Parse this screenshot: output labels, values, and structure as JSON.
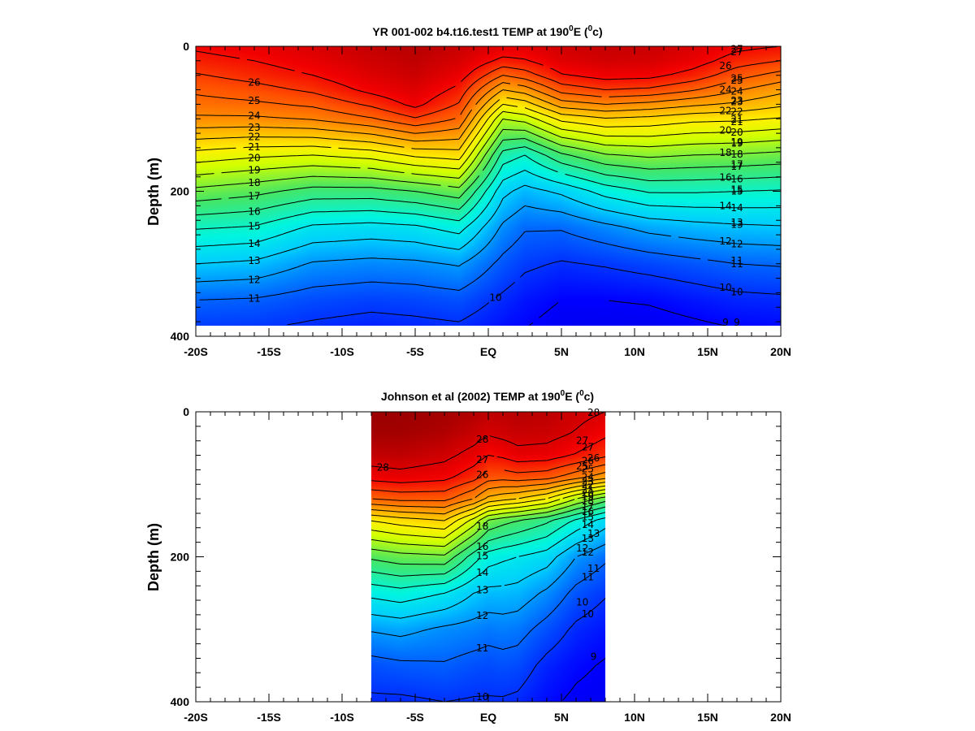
{
  "chart_data": [
    {
      "type": "heatmap",
      "title": "YR 001-002 b4.t16.test1 TEMP at 190",
      "title_sup1": "0",
      "title_mid": "E (",
      "title_sup2": "0",
      "title_end": "c)",
      "ylabel": "Depth (m)",
      "xlim": [
        -20,
        20
      ],
      "ylim": [
        400,
        0
      ],
      "data_xlim": [
        -20,
        20
      ],
      "data_ylim": [
        0,
        385
      ],
      "x_ticks": [
        {
          "value": -20,
          "label": "-20S"
        },
        {
          "value": -15,
          "label": "-15S"
        },
        {
          "value": -10,
          "label": "-10S"
        },
        {
          "value": -5,
          "label": "-5S"
        },
        {
          "value": 0,
          "label": "EQ"
        },
        {
          "value": 5,
          "label": "5N"
        },
        {
          "value": 10,
          "label": "10N"
        },
        {
          "value": 15,
          "label": "15N"
        },
        {
          "value": 20,
          "label": "20N"
        }
      ],
      "y_ticks": [
        {
          "value": 0,
          "label": "0"
        },
        {
          "value": 200,
          "label": "200"
        },
        {
          "value": 400,
          "label": "400"
        }
      ],
      "control_x": [
        -20,
        -16,
        -12,
        -8,
        -5,
        -2,
        1,
        2.5,
        5,
        8,
        11,
        14,
        17,
        20
      ],
      "t_depth": [
        0,
        20,
        40,
        60,
        80,
        100,
        150,
        200,
        250,
        300,
        350,
        400
      ],
      "t_profiles": [
        [
          27.2,
          26.6,
          25.9,
          25.2,
          24.6,
          23.8,
          20.6,
          17.7,
          15.1,
          13.0,
          11.0,
          9.9
        ],
        [
          27.6,
          27.0,
          26.4,
          25.6,
          24.8,
          23.8,
          20.2,
          17.3,
          14.9,
          12.8,
          10.9,
          9.8
        ],
        [
          28.0,
          27.6,
          27.0,
          26.2,
          25.2,
          24.1,
          20.0,
          16.6,
          13.8,
          11.9,
          10.5,
          9.6
        ],
        [
          28.6,
          28.3,
          27.9,
          27.3,
          26.2,
          24.9,
          20.4,
          16.6,
          13.6,
          11.7,
          10.3,
          9.4
        ],
        [
          28.9,
          28.7,
          28.4,
          27.9,
          27.3,
          25.9,
          21.2,
          17.0,
          13.8,
          11.8,
          10.4,
          9.5
        ],
        [
          28.5,
          28.1,
          27.5,
          26.7,
          25.9,
          24.9,
          21.5,
          17.6,
          14.4,
          12.1,
          10.6,
          9.6
        ],
        [
          27.8,
          26.7,
          25.0,
          23.0,
          21.0,
          19.0,
          15.6,
          13.3,
          11.8,
          10.7,
          9.8,
          9.1
        ],
        [
          27.8,
          26.9,
          25.5,
          23.5,
          21.5,
          19.4,
          15.0,
          12.6,
          11.1,
          10.2,
          9.4,
          8.9
        ],
        [
          28.3,
          27.8,
          26.9,
          25.4,
          23.5,
          21.3,
          16.8,
          13.2,
          11.1,
          9.9,
          9.0,
          8.5
        ],
        [
          28.6,
          28.2,
          27.4,
          26.0,
          24.0,
          21.9,
          17.9,
          14.4,
          11.7,
          10.1,
          9.0,
          8.4
        ],
        [
          28.5,
          28.1,
          27.3,
          25.8,
          23.7,
          21.7,
          18.2,
          15.1,
          12.3,
          10.4,
          9.1,
          8.4
        ],
        [
          28.0,
          27.5,
          26.6,
          25.1,
          23.2,
          21.3,
          18.0,
          15.1,
          12.6,
          10.7,
          9.4,
          8.6
        ],
        [
          27.3,
          26.5,
          25.4,
          24.1,
          22.8,
          21.2,
          17.9,
          15.0,
          12.8,
          11.0,
          9.7,
          8.8
        ],
        [
          27.0,
          26.0,
          24.6,
          23.3,
          22.2,
          20.9,
          17.7,
          14.9,
          12.9,
          11.1,
          9.8,
          8.9
        ]
      ],
      "contour_levels": [
        9,
        10,
        11,
        12,
        13,
        14,
        15,
        16,
        17,
        18,
        19,
        20,
        21,
        22,
        23,
        24,
        25,
        26,
        27
      ],
      "contour_label_values": [
        "26",
        "25",
        "24",
        "23",
        "22",
        "21",
        "20",
        "19",
        "18",
        "17",
        "16",
        "15",
        "14",
        "13",
        "12",
        "11",
        "10",
        "27",
        "25",
        "24",
        "23",
        "22",
        "21",
        "20",
        "19",
        "18",
        "17",
        "16",
        "15",
        "14",
        "13",
        "12",
        "11",
        "10",
        "27",
        "26",
        "25",
        "24",
        "23",
        "22",
        "21",
        "20",
        "19",
        "18",
        "17",
        "16",
        "15",
        "14",
        "13",
        "12",
        "11",
        "10",
        "9",
        "9"
      ]
    },
    {
      "type": "heatmap",
      "title": "Johnson et al (2002) TEMP at 190",
      "title_sup1": "0",
      "title_mid": "E (",
      "title_sup2": "0",
      "title_end": "c)",
      "ylabel": "Depth (m)",
      "xlim": [
        -20,
        20
      ],
      "ylim": [
        400,
        0
      ],
      "data_xlim": [
        -8,
        8
      ],
      "data_ylim": [
        0,
        400
      ],
      "x_ticks": [
        {
          "value": -20,
          "label": "-20S"
        },
        {
          "value": -15,
          "label": "-15S"
        },
        {
          "value": -10,
          "label": "-10S"
        },
        {
          "value": -5,
          "label": "-5S"
        },
        {
          "value": 0,
          "label": "EQ"
        },
        {
          "value": 5,
          "label": "5N"
        },
        {
          "value": 10,
          "label": "10N"
        },
        {
          "value": 15,
          "label": "15N"
        },
        {
          "value": 20,
          "label": "20N"
        }
      ],
      "y_ticks": [
        {
          "value": 0,
          "label": "0"
        },
        {
          "value": 200,
          "label": "200"
        },
        {
          "value": 400,
          "label": "400"
        }
      ],
      "control_x": [
        -8,
        -6,
        -3,
        -1,
        0,
        1,
        2,
        4,
        6,
        8
      ],
      "t_depth": [
        0,
        30,
        60,
        90,
        120,
        150,
        200,
        250,
        300,
        350,
        400
      ],
      "t_profiles": [
        [
          29.5,
          29.3,
          28.6,
          27.4,
          25.0,
          21.0,
          17.2,
          14.3,
          12.1,
          10.6,
          9.8
        ],
        [
          29.5,
          29.3,
          28.7,
          27.6,
          25.3,
          21.5,
          17.6,
          14.6,
          12.3,
          10.8,
          9.8
        ],
        [
          29.3,
          29.0,
          28.3,
          27.3,
          25.3,
          22.0,
          17.8,
          14.0,
          11.8,
          10.9,
          10.0
        ],
        [
          29.0,
          28.5,
          27.6,
          26.4,
          24.0,
          19.6,
          15.5,
          13.0,
          11.6,
          10.6,
          9.9
        ],
        [
          28.8,
          28.1,
          27.0,
          25.5,
          22.7,
          17.9,
          14.5,
          12.7,
          11.4,
          10.5,
          9.9
        ],
        [
          28.8,
          28.3,
          27.2,
          25.4,
          22.3,
          17.4,
          14.2,
          12.7,
          11.5,
          10.6,
          9.9
        ],
        [
          28.9,
          28.5,
          27.6,
          25.6,
          22.0,
          17.0,
          14.0,
          12.6,
          11.4,
          10.5,
          9.8
        ],
        [
          28.8,
          28.4,
          27.5,
          25.4,
          21.0,
          16.2,
          13.5,
          11.8,
          10.6,
          9.7,
          9.2
        ],
        [
          28.4,
          27.9,
          26.9,
          24.4,
          19.0,
          14.8,
          12.0,
          10.7,
          9.8,
          9.2,
          8.8
        ],
        [
          28.0,
          27.2,
          26.2,
          23.4,
          17.5,
          13.5,
          11.2,
          10.1,
          9.4,
          8.9,
          8.6
        ]
      ],
      "contour_levels": [
        9,
        10,
        11,
        12,
        13,
        14,
        15,
        16,
        17,
        18,
        19,
        20,
        21,
        22,
        23,
        24,
        25,
        26,
        27,
        28
      ],
      "contour_label_values": [
        "28",
        "28",
        "27",
        "26",
        "18",
        "16",
        "15",
        "14",
        "13",
        "12",
        "11",
        "10",
        "27",
        "26",
        "25",
        "24",
        "23",
        "22",
        "21",
        "20",
        "19",
        "18",
        "17",
        "16",
        "15",
        "14",
        "13",
        "12",
        "11",
        "10",
        "28",
        "27",
        "26",
        "25",
        "13",
        "12",
        "11",
        "10",
        "9"
      ]
    }
  ]
}
